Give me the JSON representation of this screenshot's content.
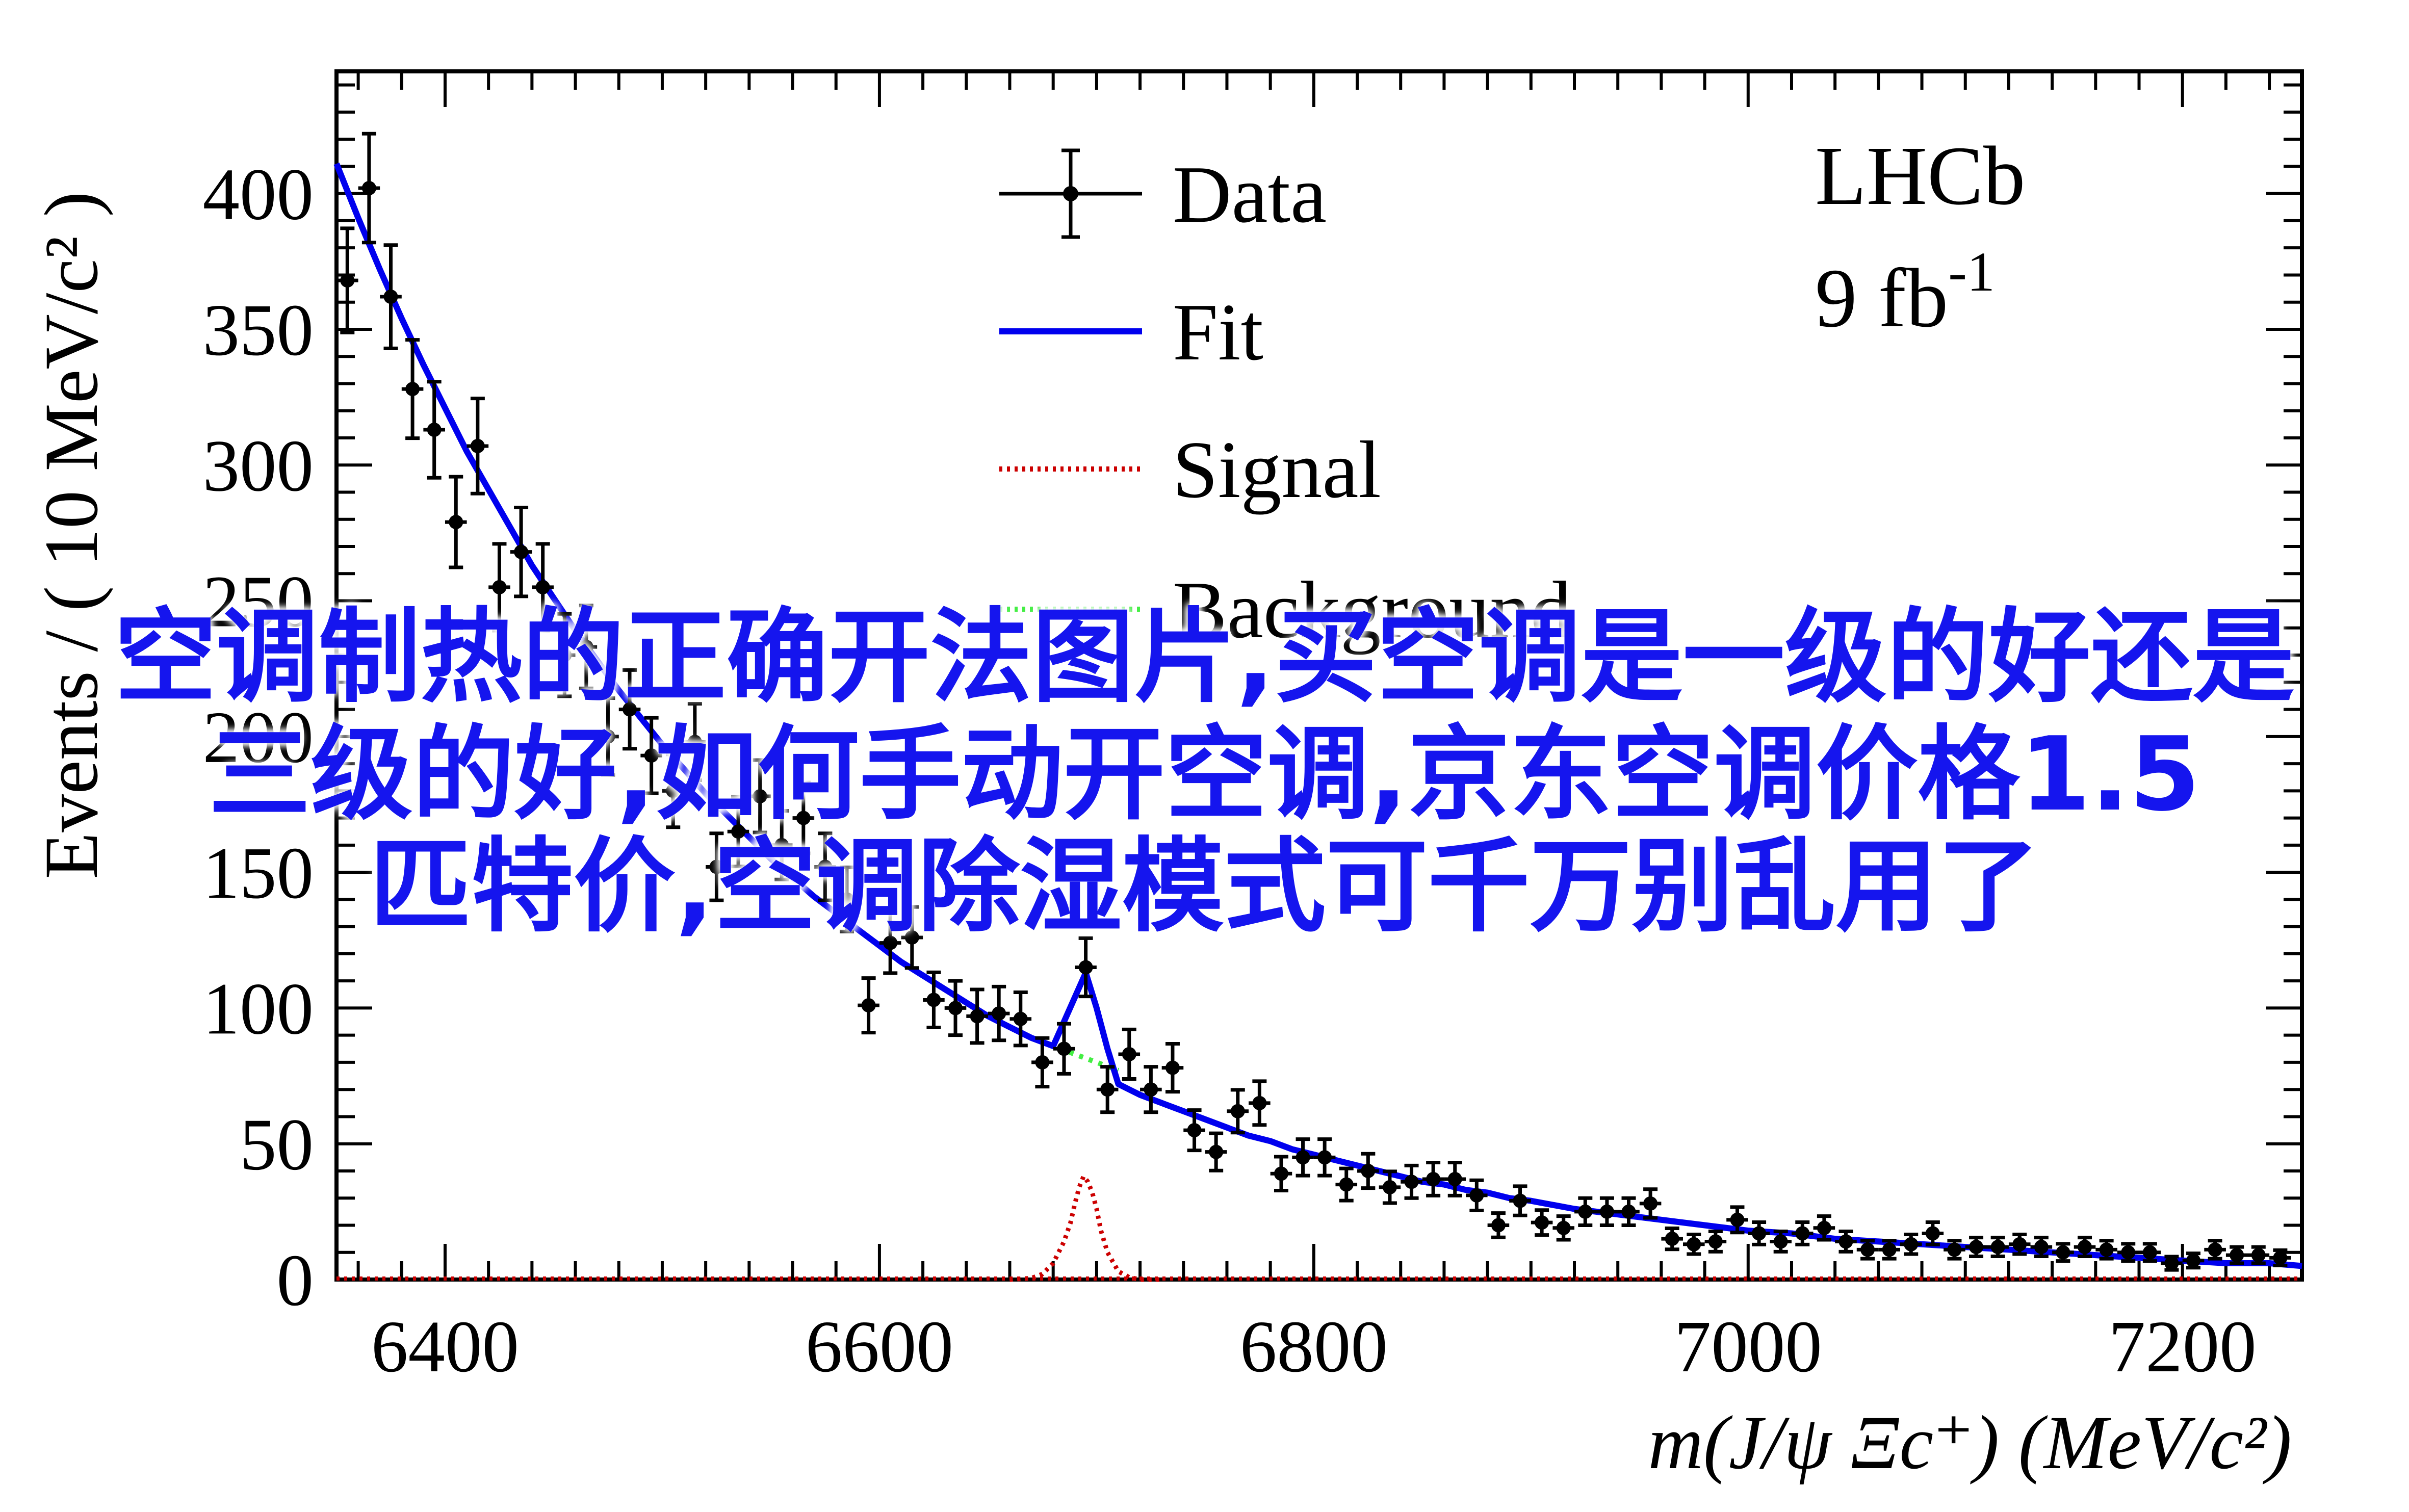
{
  "chart_data": {
    "type": "scatter",
    "xlabel": "m(J/ψ Ξc⁺) (MeV/c²)",
    "ylabel": "Events / ( 10 MeV/c² )",
    "xlim": [
      6350,
      7255
    ],
    "ylim": [
      0,
      445
    ],
    "x_ticks": [
      6400,
      6600,
      6800,
      7000,
      7200
    ],
    "y_ticks": [
      0,
      50,
      100,
      150,
      200,
      250,
      300,
      350,
      400
    ],
    "grid": false,
    "legend_position": "top-center",
    "legend": [
      {
        "label": "Data",
        "style": "points-with-errors",
        "color": "#000000"
      },
      {
        "label": "Fit",
        "style": "solid",
        "color": "#0000ee"
      },
      {
        "label": "Signal",
        "style": "dotted",
        "color": "#cc0000"
      },
      {
        "label": "Background",
        "style": "dotted",
        "color": "#44ee44"
      }
    ],
    "annotation_lines": [
      "LHCb",
      "9 fb-1"
    ],
    "series": [
      {
        "name": "Data",
        "x": [
          6355,
          6365,
          6375,
          6385,
          6395,
          6405,
          6415,
          6425,
          6435,
          6445,
          6455,
          6465,
          6475,
          6485,
          6495,
          6505,
          6515,
          6525,
          6535,
          6545,
          6555,
          6565,
          6575,
          6585,
          6595,
          6605,
          6615,
          6625,
          6635,
          6645,
          6655,
          6665,
          6675,
          6685,
          6695,
          6705,
          6715,
          6725,
          6735,
          6745,
          6755,
          6765,
          6775,
          6785,
          6795,
          6805,
          6815,
          6825,
          6835,
          6845,
          6855,
          6865,
          6875,
          6885,
          6895,
          6905,
          6915,
          6925,
          6935,
          6945,
          6955,
          6965,
          6975,
          6985,
          6995,
          7005,
          7015,
          7025,
          7035,
          7045,
          7055,
          7065,
          7075,
          7085,
          7095,
          7105,
          7115,
          7125,
          7135,
          7145,
          7155,
          7165,
          7175,
          7185,
          7195,
          7205,
          7215,
          7225,
          7235,
          7245
        ],
        "y": [
          368,
          402,
          362,
          328,
          313,
          279,
          307,
          255,
          268,
          255,
          230,
          233,
          200,
          210,
          193,
          180,
          198,
          152,
          165,
          178,
          160,
          170,
          152,
          140,
          101,
          124,
          126,
          103,
          100,
          97,
          98,
          96,
          80,
          85,
          115,
          70,
          83,
          70,
          78,
          55,
          47,
          62,
          65,
          39,
          45,
          45,
          35,
          40,
          34,
          36,
          37,
          37,
          31,
          20,
          29,
          21,
          19,
          25,
          25,
          25,
          28,
          15,
          13,
          14,
          22,
          17,
          14,
          17,
          19,
          14,
          11,
          11,
          13,
          17,
          11,
          12,
          12,
          13,
          12,
          10,
          12,
          11,
          10,
          10,
          6,
          7,
          11,
          9,
          9,
          8
        ]
      },
      {
        "name": "Fit",
        "x": [
          6350,
          6360,
          6370,
          6380,
          6390,
          6400,
          6410,
          6420,
          6430,
          6440,
          6450,
          6460,
          6470,
          6480,
          6490,
          6500,
          6510,
          6520,
          6530,
          6540,
          6550,
          6560,
          6570,
          6580,
          6590,
          6600,
          6610,
          6620,
          6630,
          6640,
          6650,
          6660,
          6670,
          6680,
          6690,
          6695,
          6700,
          6705,
          6710,
          6715,
          6720,
          6730,
          6740,
          6750,
          6760,
          6770,
          6780,
          6790,
          6800,
          6810,
          6820,
          6830,
          6840,
          6850,
          6860,
          6870,
          6880,
          6890,
          6900,
          6920,
          6940,
          6960,
          6980,
          7000,
          7020,
          7040,
          7060,
          7080,
          7100,
          7120,
          7140,
          7160,
          7180,
          7200,
          7220,
          7240,
          7255
        ],
        "y": [
          411,
          391,
          372,
          354,
          337,
          321,
          305,
          291,
          277,
          263,
          251,
          239,
          228,
          217,
          207,
          197,
          188,
          179,
          171,
          163,
          155,
          148,
          141,
          135,
          129,
          123,
          117,
          112,
          107,
          102,
          97,
          93,
          89,
          86,
          104,
          113,
          100,
          85,
          72,
          70,
          68,
          65,
          62,
          59,
          56,
          53,
          51,
          48,
          46,
          44,
          42,
          40,
          38,
          36,
          35,
          33,
          32,
          30,
          29,
          26,
          24,
          22,
          20,
          18,
          17,
          15,
          14,
          13,
          12,
          11,
          10,
          9,
          8,
          7,
          6,
          6,
          5
        ]
      },
      {
        "name": "Signal",
        "x": [
          6660,
          6670,
          6675,
          6680,
          6685,
          6688,
          6690,
          6692,
          6694,
          6696,
          6698,
          6700,
          6702,
          6705,
          6710,
          6715,
          6720,
          6730
        ],
        "y": [
          0,
          0.5,
          2,
          6,
          14,
          21,
          28,
          34,
          38,
          36,
          32,
          26,
          18,
          10,
          3,
          0.8,
          0,
          0
        ]
      },
      {
        "name": "Background",
        "x": [
          6670,
          6680,
          6690,
          6700,
          6710
        ],
        "y": [
          89,
          86,
          83,
          80,
          77
        ]
      }
    ]
  },
  "overlay": {
    "line1": "空调制热的正确开法图片,买空调是一级的好还是",
    "line2": "三级的好,如何手动开空调,京东空调价格1.5",
    "line3": "匹特价,空调除湿模式可千万别乱用了"
  }
}
